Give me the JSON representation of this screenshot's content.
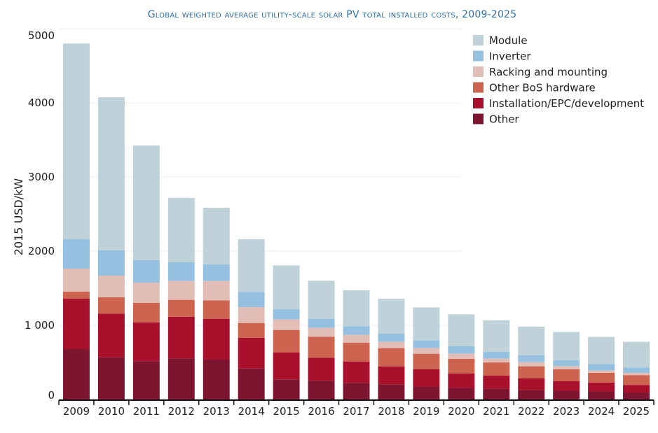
{
  "chart_data": {
    "type": "bar",
    "stacked": true,
    "title": "Global weighted average utility-scale solar PV total installed costs, 2009-2025",
    "xlabel": "",
    "ylabel": "2015 USD/kW",
    "ylim": [
      0,
      5000
    ],
    "yticks": [
      0,
      1000,
      2000,
      3000,
      4000,
      5000
    ],
    "ytick_labels": [
      "0",
      "1 000",
      "2000",
      "3000",
      "4000",
      "5000"
    ],
    "grid": true,
    "legend_position": "top-right",
    "categories": [
      "2009",
      "2010",
      "2011",
      "2012",
      "2013",
      "2014",
      "2015",
      "2016",
      "2017",
      "2018",
      "2019",
      "2020",
      "2021",
      "2022",
      "2023",
      "2024",
      "2025"
    ],
    "series": [
      {
        "name": "Other",
        "color": "#7d1430",
        "values": [
          679,
          569,
          516,
          553,
          538,
          418,
          271,
          252,
          224,
          204,
          174,
          155,
          145,
          126,
          118,
          108,
          94
        ]
      },
      {
        "name": "Installation/EPC/development",
        "color": "#a8102b",
        "values": [
          679,
          589,
          524,
          563,
          550,
          415,
          364,
          311,
          288,
          242,
          234,
          195,
          176,
          157,
          127,
          120,
          101
        ]
      },
      {
        "name": "Other BoS hardware",
        "color": "#cd6450",
        "values": [
          95,
          219,
          262,
          227,
          249,
          198,
          302,
          283,
          252,
          246,
          208,
          198,
          178,
          164,
          161,
          132,
          133
        ]
      },
      {
        "name": "Racking and mounting",
        "color": "#e1bdb5",
        "values": [
          311,
          293,
          273,
          254,
          260,
          214,
          141,
          119,
          107,
          85,
          76,
          69,
          51,
          56,
          44,
          30,
          31
        ]
      },
      {
        "name": "Inverter",
        "color": "#95c0df",
        "values": [
          396,
          342,
          302,
          252,
          224,
          205,
          142,
          123,
          117,
          113,
          103,
          100,
          91,
          91,
          78,
          88,
          72
        ]
      },
      {
        "name": "Module",
        "color": "#bfd2d9",
        "values": [
          2640,
          2063,
          1548,
          868,
          764,
          710,
          588,
          513,
          484,
          468,
          447,
          431,
          425,
          387,
          381,
          365,
          346
        ]
      }
    ],
    "legend_order": [
      "Module",
      "Inverter",
      "Racking and mounting",
      "Other BoS hardware",
      "Installation/EPC/development",
      "Other"
    ]
  }
}
